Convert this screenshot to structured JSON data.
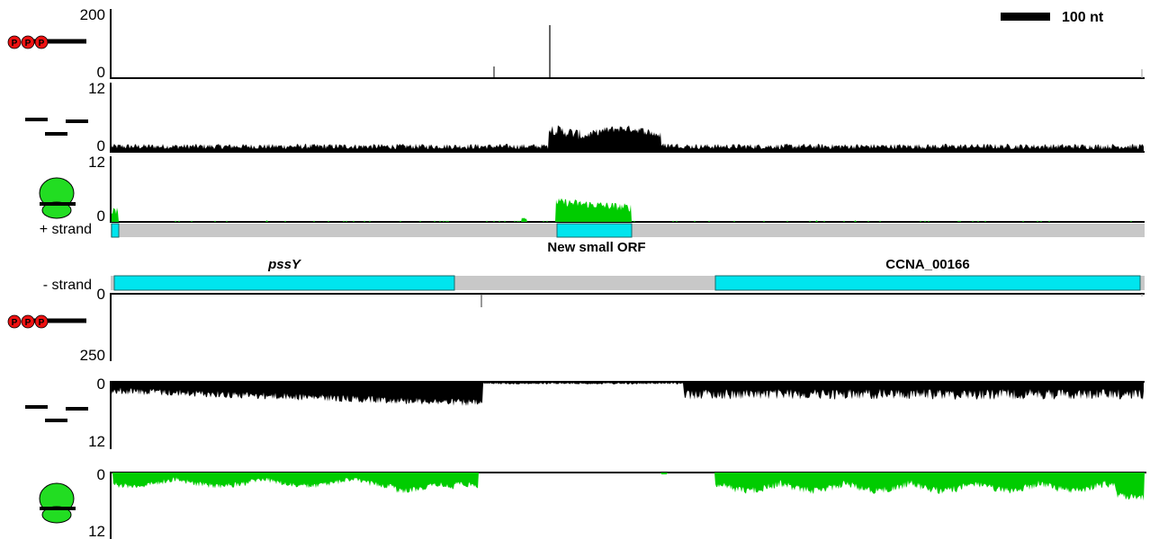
{
  "scale_bar": {
    "label": "100 nt"
  },
  "plus_strand": {
    "label": "+ strand",
    "tracks": [
      {
        "id": "tss",
        "icon": "triphosphate-rna-icon",
        "y_top": "200",
        "y_bottom": "0",
        "color": "#000000"
      },
      {
        "id": "rnaseq",
        "icon": "rna-fragments-icon",
        "y_top": "12",
        "y_bottom": "0",
        "color": "#000000"
      },
      {
        "id": "riboseq",
        "icon": "ribosome-icon",
        "y_top": "12",
        "y_bottom": "0",
        "color": "#00cc00"
      }
    ],
    "genes": [
      {
        "id": "orf-left-edge",
        "label": ""
      },
      {
        "id": "new-small-orf",
        "label": "New small ORF"
      }
    ]
  },
  "minus_strand": {
    "label": "- strand",
    "tracks": [
      {
        "id": "tss",
        "icon": "triphosphate-rna-icon",
        "y_top": "0",
        "y_bottom": "250",
        "color": "#000000"
      },
      {
        "id": "rnaseq",
        "icon": "rna-fragments-icon",
        "y_top": "0",
        "y_bottom": "12",
        "color": "#000000"
      },
      {
        "id": "riboseq",
        "icon": "ribosome-icon",
        "y_top": "0",
        "y_bottom": "12",
        "color": "#00cc00"
      }
    ],
    "genes": [
      {
        "id": "pssY",
        "label": "pssY"
      },
      {
        "id": "ccna-00166",
        "label": "CCNA_00166"
      }
    ]
  },
  "colors": {
    "gene_fill": "#00e5ee",
    "strand_bar": "#c8c8c8",
    "ribo": "#00cc00",
    "reads": "#000000",
    "ppp": "#ee1111"
  }
}
